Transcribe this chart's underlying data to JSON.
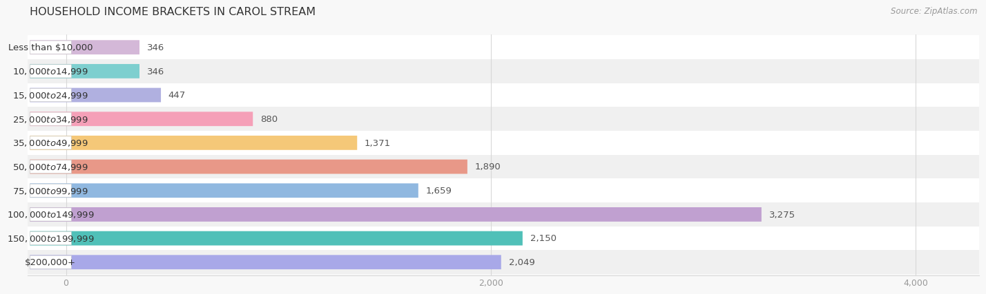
{
  "title": "HOUSEHOLD INCOME BRACKETS IN CAROL STREAM",
  "source": "Source: ZipAtlas.com",
  "categories": [
    "Less than $10,000",
    "$10,000 to $14,999",
    "$15,000 to $24,999",
    "$25,000 to $34,999",
    "$35,000 to $49,999",
    "$50,000 to $74,999",
    "$75,000 to $99,999",
    "$100,000 to $149,999",
    "$150,000 to $199,999",
    "$200,000+"
  ],
  "values": [
    346,
    346,
    447,
    880,
    1371,
    1890,
    1659,
    3275,
    2150,
    2049
  ],
  "bar_colors": [
    "#d4b8d8",
    "#7ecfcf",
    "#b0b0e0",
    "#f5a0b8",
    "#f5c878",
    "#e89888",
    "#90b8e0",
    "#c0a0d0",
    "#50c0b8",
    "#a8a8e8"
  ],
  "row_colors": [
    "#ffffff",
    "#f0f0f0"
  ],
  "xlim_min": -180,
  "xlim_max": 4300,
  "xticks": [
    0,
    2000,
    4000
  ],
  "grid_color": "#d8d8d8",
  "background_color": "#f8f8f8",
  "label_fontsize": 9.5,
  "value_fontsize": 9.5,
  "title_fontsize": 11.5,
  "source_fontsize": 8.5,
  "title_color": "#333333",
  "label_color": "#333333",
  "value_color": "#555555",
  "tick_color": "#999999",
  "source_color": "#999999"
}
